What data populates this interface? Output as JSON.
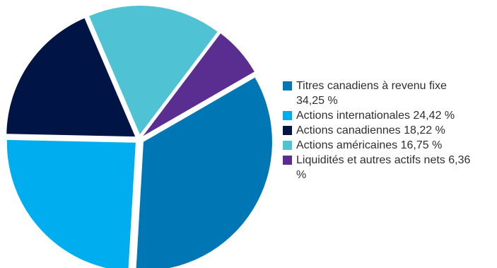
{
  "chart_data": {
    "type": "pie",
    "slices": [
      {
        "label": "Titres canadiens à revenu fixe 34,25 %",
        "value": 34.25,
        "color": "#0077b5"
      },
      {
        "label": "Actions internationales 24,42 %",
        "value": 24.42,
        "color": "#00aeef"
      },
      {
        "label": "Actions canadiennes 18,22 %",
        "value": 18.22,
        "color": "#001446"
      },
      {
        "label": "Actions américaines 16,75 %",
        "value": 16.75,
        "color": "#4fc3d3"
      },
      {
        "label": "Liquidités et autres actifs nets 6,36 %",
        "value": 6.36,
        "color": "#5a2d91"
      }
    ],
    "legend_position": "right"
  }
}
